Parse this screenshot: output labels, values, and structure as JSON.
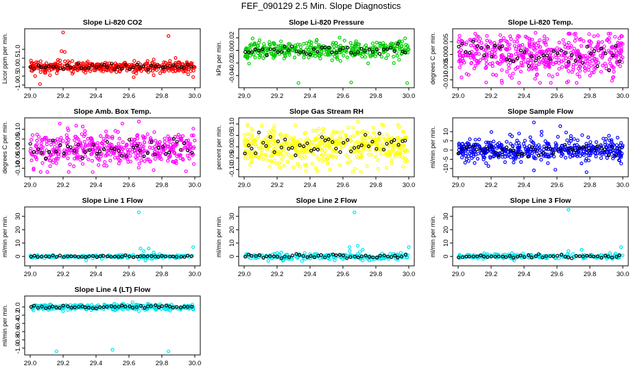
{
  "title": "FEF_090129  2.5 Min. Slope Diagnostics",
  "chart_data": [
    {
      "type": "scatter",
      "title": "Slope Li-820 CO2",
      "ylabel": "Licor ppm per min.",
      "color": "#ff0000",
      "xlim": [
        29.0,
        30.0
      ],
      "ylim": [
        -1.0,
        2.0
      ],
      "xticks": [
        29.0,
        29.2,
        29.4,
        29.6,
        29.8,
        30.0
      ],
      "xtick_labels": [
        "29.0",
        "29.2",
        "29.4",
        "29.6",
        "29.8",
        "30.0"
      ],
      "yticks": [
        -1.0,
        -0.5,
        0.0,
        0.5,
        1.0
      ],
      "ytick_labels": [
        "-1.0",
        "-0.5",
        "0.0",
        "0.5",
        "1.0"
      ],
      "noise": 0.15,
      "seed": 11,
      "n": 420,
      "outliers": [
        [
          29.2,
          1.95
        ],
        [
          29.19,
          0.9
        ],
        [
          29.21,
          0.85
        ],
        [
          29.84,
          1.75
        ],
        [
          29.06,
          -0.95
        ],
        [
          29.03,
          -0.5
        ],
        [
          29.12,
          -0.45
        ],
        [
          29.99,
          -0.55
        ],
        [
          29.96,
          -0.4
        ]
      ]
    },
    {
      "type": "scatter",
      "title": "Slope Li-820 Pressure",
      "ylabel": "kPa per min.",
      "color": "#00cc00",
      "xlim": [
        29.0,
        30.0
      ],
      "ylim": [
        -0.055,
        0.03
      ],
      "xticks": [
        29.0,
        29.2,
        29.4,
        29.6,
        29.8,
        30.0
      ],
      "xtick_labels": [
        "29.0",
        "29.2",
        "29.4",
        "29.6",
        "29.8",
        "30.0"
      ],
      "yticks": [
        -0.04,
        -0.02,
        0.0,
        0.02
      ],
      "ytick_labels": [
        "-0.04",
        "-0.02",
        "0.00",
        "0.02"
      ],
      "noise": 0.007,
      "seed": 23,
      "n": 380,
      "outliers": [
        [
          29.03,
          -0.021
        ],
        [
          29.33,
          -0.052
        ],
        [
          29.65,
          -0.051
        ],
        [
          29.99,
          -0.052
        ],
        [
          29.44,
          0.016
        ]
      ]
    },
    {
      "type": "scatter",
      "title": "Slope Li-820 Temp.",
      "ylabel": "degrees C per min.",
      "color": "#ff00ff",
      "xlim": [
        29.0,
        30.0
      ],
      "ylim": [
        -0.012,
        0.009
      ],
      "xticks": [
        29.0,
        29.2,
        29.4,
        29.6,
        29.8,
        30.0
      ],
      "xtick_labels": [
        "29.0",
        "29.2",
        "29.4",
        "29.6",
        "29.8",
        "30.0"
      ],
      "yticks": [
        -0.01,
        -0.005,
        0.0,
        0.005
      ],
      "ytick_labels": [
        "-0.010",
        "-0.005",
        "0.000",
        "0.005"
      ],
      "noise": 0.0042,
      "seed": 37,
      "n": 520,
      "outliers": [
        [
          29.17,
          -0.011
        ],
        [
          29.02,
          -0.009
        ],
        [
          29.66,
          -0.011
        ],
        [
          29.94,
          -0.009
        ],
        [
          29.47,
          0.0085
        ]
      ]
    },
    {
      "type": "scatter",
      "title": "Slope Amb. Box Temp.",
      "ylabel": "degrees C per min.",
      "color": "#ff00ff",
      "xlim": [
        29.0,
        30.0
      ],
      "ylim": [
        -0.13,
        0.145
      ],
      "xticks": [
        29.0,
        29.2,
        29.4,
        29.6,
        29.8,
        30.0
      ],
      "xtick_labels": [
        "29.0",
        "29.2",
        "29.4",
        "29.6",
        "29.8",
        "30.0"
      ],
      "yticks": [
        -0.1,
        -0.05,
        0.0,
        0.05,
        0.1
      ],
      "ytick_labels": [
        "-0.10",
        "-0.05",
        "0.00",
        "0.05",
        "0.10"
      ],
      "noise": 0.045,
      "seed": 41,
      "n": 460,
      "outliers": [
        [
          29.18,
          0.13
        ],
        [
          29.56,
          0.13
        ],
        [
          29.66,
          0.14
        ],
        [
          29.38,
          -0.12
        ],
        [
          29.75,
          -0.11
        ]
      ]
    },
    {
      "type": "scatter",
      "title": "Slope Gas Stream RH",
      "ylabel": "percent per min.",
      "color": "#ffff00",
      "xlim": [
        29.0,
        30.0
      ],
      "ylim": [
        -0.12,
        0.115
      ],
      "xticks": [
        29.0,
        29.2,
        29.4,
        29.6,
        29.8,
        30.0
      ],
      "xtick_labels": [
        "29.0",
        "29.2",
        "29.4",
        "29.6",
        "29.8",
        "30.0"
      ],
      "yticks": [
        -0.1,
        -0.05,
        0.0,
        0.05,
        0.1
      ],
      "ytick_labels": [
        "-0.10",
        "-0.05",
        "0.00",
        "0.05",
        "0.10"
      ],
      "noise": 0.04,
      "seed": 53,
      "n": 500,
      "outliers": [
        [
          29.69,
          0.11
        ],
        [
          29.52,
          -0.1
        ],
        [
          29.71,
          -0.11
        ],
        [
          29.3,
          -0.09
        ]
      ]
    },
    {
      "type": "scatter",
      "title": "Slope Sample Flow",
      "ylabel": "ml/min per min.",
      "color": "#0000ff",
      "xlim": [
        29.0,
        30.0
      ],
      "ylim": [
        -13,
        16
      ],
      "xticks": [
        29.0,
        29.2,
        29.4,
        29.6,
        29.8,
        30.0
      ],
      "xtick_labels": [
        "29.0",
        "29.2",
        "29.4",
        "29.6",
        "29.8",
        "30.0"
      ],
      "yticks": [
        -10,
        -5,
        0,
        5,
        10
      ],
      "ytick_labels": [
        "-10",
        "-5",
        "0",
        "5",
        "10"
      ],
      "noise": 3.0,
      "seed": 67,
      "n": 450,
      "outliers": [
        [
          29.78,
          -12
        ],
        [
          29.46,
          -11
        ],
        [
          29.46,
          15
        ],
        [
          29.62,
          13
        ],
        [
          29.1,
          -7
        ],
        [
          29.37,
          9
        ]
      ]
    },
    {
      "type": "scatter",
      "title": "Slope Line 1 Flow",
      "ylabel": "ml/min per min.",
      "color": "#00e5ee",
      "xlim": [
        29.0,
        30.0
      ],
      "ylim": [
        -5,
        35
      ],
      "xticks": [
        29.0,
        29.2,
        29.4,
        29.6,
        29.8,
        30.0
      ],
      "xtick_labels": [
        "29.0",
        "29.2",
        "29.4",
        "29.6",
        "29.8",
        "30.0"
      ],
      "yticks": [
        0,
        10,
        20,
        30
      ],
      "ytick_labels": [
        "0",
        "10",
        "20",
        "30"
      ],
      "noise": 0.6,
      "seed": 71,
      "n": 200,
      "outliers": [
        [
          29.66,
          33
        ],
        [
          29.99,
          7
        ],
        [
          29.67,
          6
        ],
        [
          29.72,
          6
        ],
        [
          29.69,
          4
        ],
        [
          29.75,
          3
        ],
        [
          29.7,
          -3
        ],
        [
          29.74,
          -2
        ],
        [
          29.34,
          -3
        ],
        [
          29.66,
          -2
        ]
      ]
    },
    {
      "type": "scatter",
      "title": "Slope Line 2 Flow",
      "ylabel": "ml/min per min.",
      "color": "#00e5ee",
      "xlim": [
        29.0,
        30.0
      ],
      "ylim": [
        -5,
        35
      ],
      "xticks": [
        29.0,
        29.2,
        29.4,
        29.6,
        29.8,
        30.0
      ],
      "xtick_labels": [
        "29.0",
        "29.2",
        "29.4",
        "29.6",
        "29.8",
        "30.0"
      ],
      "yticks": [
        0,
        10,
        20,
        30
      ],
      "ytick_labels": [
        "0",
        "10",
        "20",
        "30"
      ],
      "noise": 1.3,
      "seed": 83,
      "n": 220,
      "outliers": [
        [
          29.67,
          33
        ],
        [
          30.0,
          7
        ],
        [
          29.64,
          7
        ],
        [
          29.69,
          8
        ],
        [
          29.72,
          5
        ],
        [
          29.76,
          -3
        ],
        [
          29.6,
          -2
        ],
        [
          29.55,
          -3
        ],
        [
          29.72,
          -3
        ]
      ]
    },
    {
      "type": "scatter",
      "title": "Slope Line 3 Flow",
      "ylabel": "ml/min per min.",
      "color": "#00e5ee",
      "xlim": [
        29.0,
        30.0
      ],
      "ylim": [
        -5,
        35
      ],
      "xticks": [
        29.0,
        29.2,
        29.4,
        29.6,
        29.8,
        30.0
      ],
      "xtick_labels": [
        "29.0",
        "29.2",
        "29.4",
        "29.6",
        "29.8",
        "30.0"
      ],
      "yticks": [
        0,
        10,
        20,
        30
      ],
      "ytick_labels": [
        "0",
        "10",
        "20",
        "30"
      ],
      "noise": 0.9,
      "seed": 97,
      "n": 210,
      "outliers": [
        [
          29.67,
          35
        ],
        [
          29.99,
          7
        ],
        [
          29.34,
          -3
        ],
        [
          29.75,
          5
        ],
        [
          29.67,
          4
        ]
      ]
    },
    {
      "type": "scatter",
      "title": "Slope Line 4 (LT) Flow",
      "ylabel": "ml/min per min.",
      "color": "#00e5ee",
      "xlim": [
        29.0,
        30.0
      ],
      "ylim": [
        -1.1,
        0.2
      ],
      "xticks": [
        29.0,
        29.2,
        29.4,
        29.6,
        29.8,
        30.0
      ],
      "xtick_labels": [
        "29.0",
        "29.2",
        "29.4",
        "29.6",
        "29.8",
        "30.0"
      ],
      "yticks": [
        -1.0,
        -0.8,
        -0.6,
        -0.4,
        -0.2,
        0.0
      ],
      "ytick_labels": [
        "-1.0",
        "-0.8",
        "-0.6",
        "-0.4",
        "-0.2",
        "0.0"
      ],
      "noise": 0.035,
      "seed": 101,
      "n": 320,
      "outliers": [
        [
          29.16,
          -1.08
        ],
        [
          29.5,
          -1.04
        ],
        [
          29.84,
          -1.08
        ],
        [
          29.2,
          -0.1
        ],
        [
          29.66,
          -0.1
        ]
      ]
    }
  ]
}
